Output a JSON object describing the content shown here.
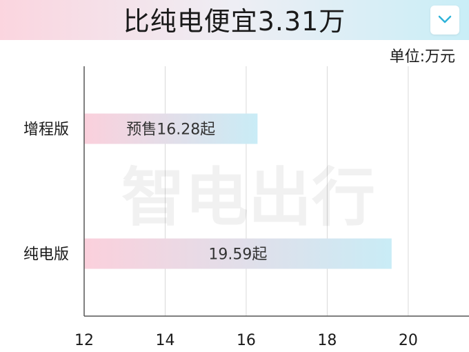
{
  "header": {
    "title": "比纯电便宜3.31万",
    "collapse_icon": "chevron-down-icon"
  },
  "colors": {
    "accent": "#2fb3d9",
    "bar_start": "#fbd0dc",
    "bar_end": "#c9ecf6",
    "grid": "#d8d8d8"
  },
  "chart_data": {
    "type": "bar",
    "orientation": "horizontal",
    "title": "比纯电便宜3.31万",
    "unit_label": "单位:万元",
    "categories": [
      "增程版",
      "纯电版"
    ],
    "values": [
      16.28,
      19.59
    ],
    "data_labels": [
      "预售16.28起",
      "19.59起"
    ],
    "xlim": [
      12,
      21.5
    ],
    "xticks": [
      12,
      14,
      16,
      18,
      20
    ],
    "grid": true,
    "legend": "none"
  }
}
